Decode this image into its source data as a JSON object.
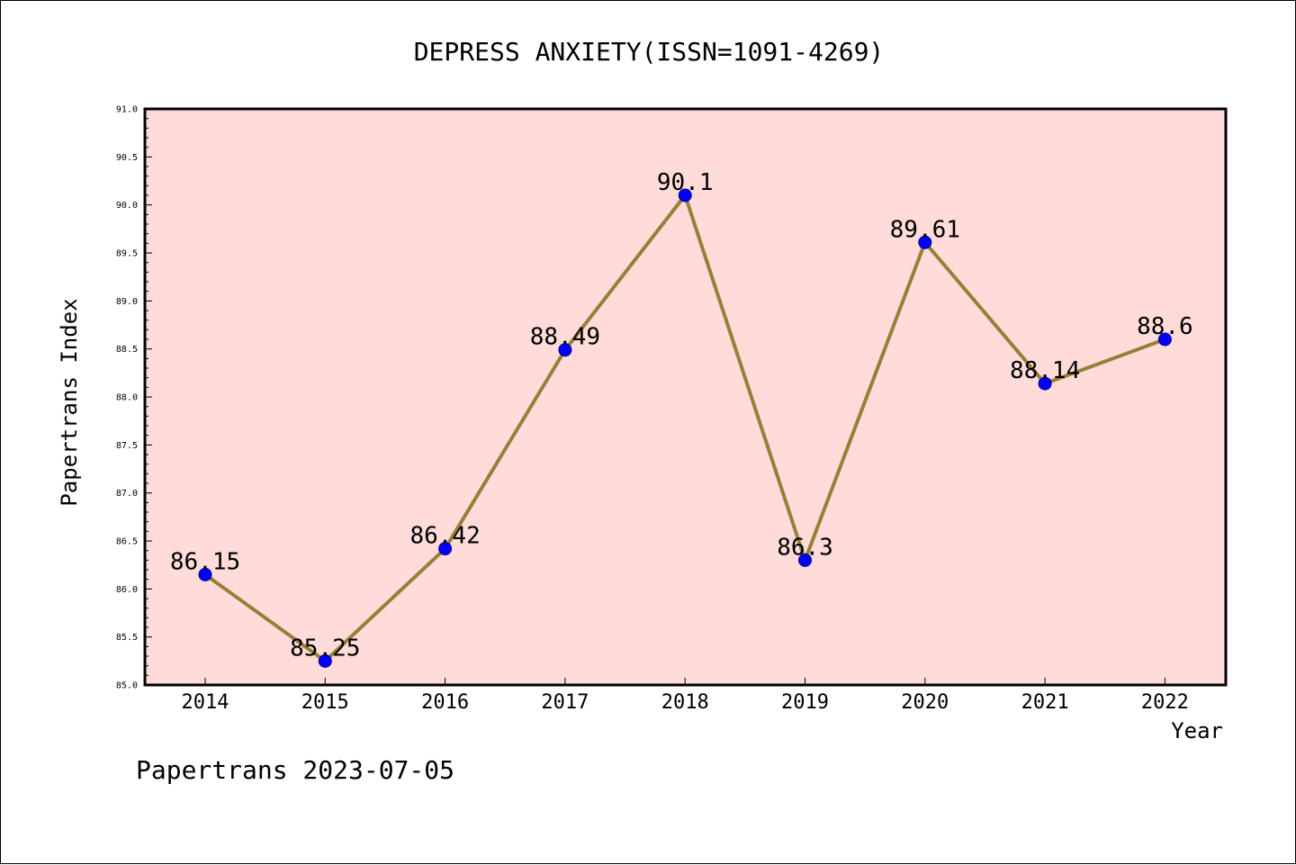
{
  "chart_data": {
    "type": "line",
    "title": "DEPRESS ANXIETY(ISSN=1091-4269)",
    "xlabel": "Year",
    "ylabel": "Papertrans Index",
    "categories": [
      "2014",
      "2015",
      "2016",
      "2017",
      "2018",
      "2019",
      "2020",
      "2021",
      "2022"
    ],
    "values": [
      86.15,
      85.25,
      86.42,
      88.49,
      90.1,
      86.3,
      89.61,
      88.14,
      88.6
    ],
    "data_labels": [
      "86.15",
      "85.25",
      "86.42",
      "88.49",
      "90.1",
      "86.3",
      "89.61",
      "88.14",
      "88.6"
    ],
    "y_ticks": [
      "85.0",
      "85.5",
      "86.0",
      "86.5",
      "87.0",
      "87.5",
      "88.0",
      "88.5",
      "89.0",
      "89.5",
      "90.0",
      "90.5",
      "91.0"
    ],
    "ylim": [
      85.0,
      91.0
    ],
    "grid": false,
    "colors": {
      "plot_background": "#ffdcda",
      "line": "#968038",
      "marker": "#0000ff"
    }
  },
  "footer": {
    "text": "Papertrans 2023-07-05"
  }
}
